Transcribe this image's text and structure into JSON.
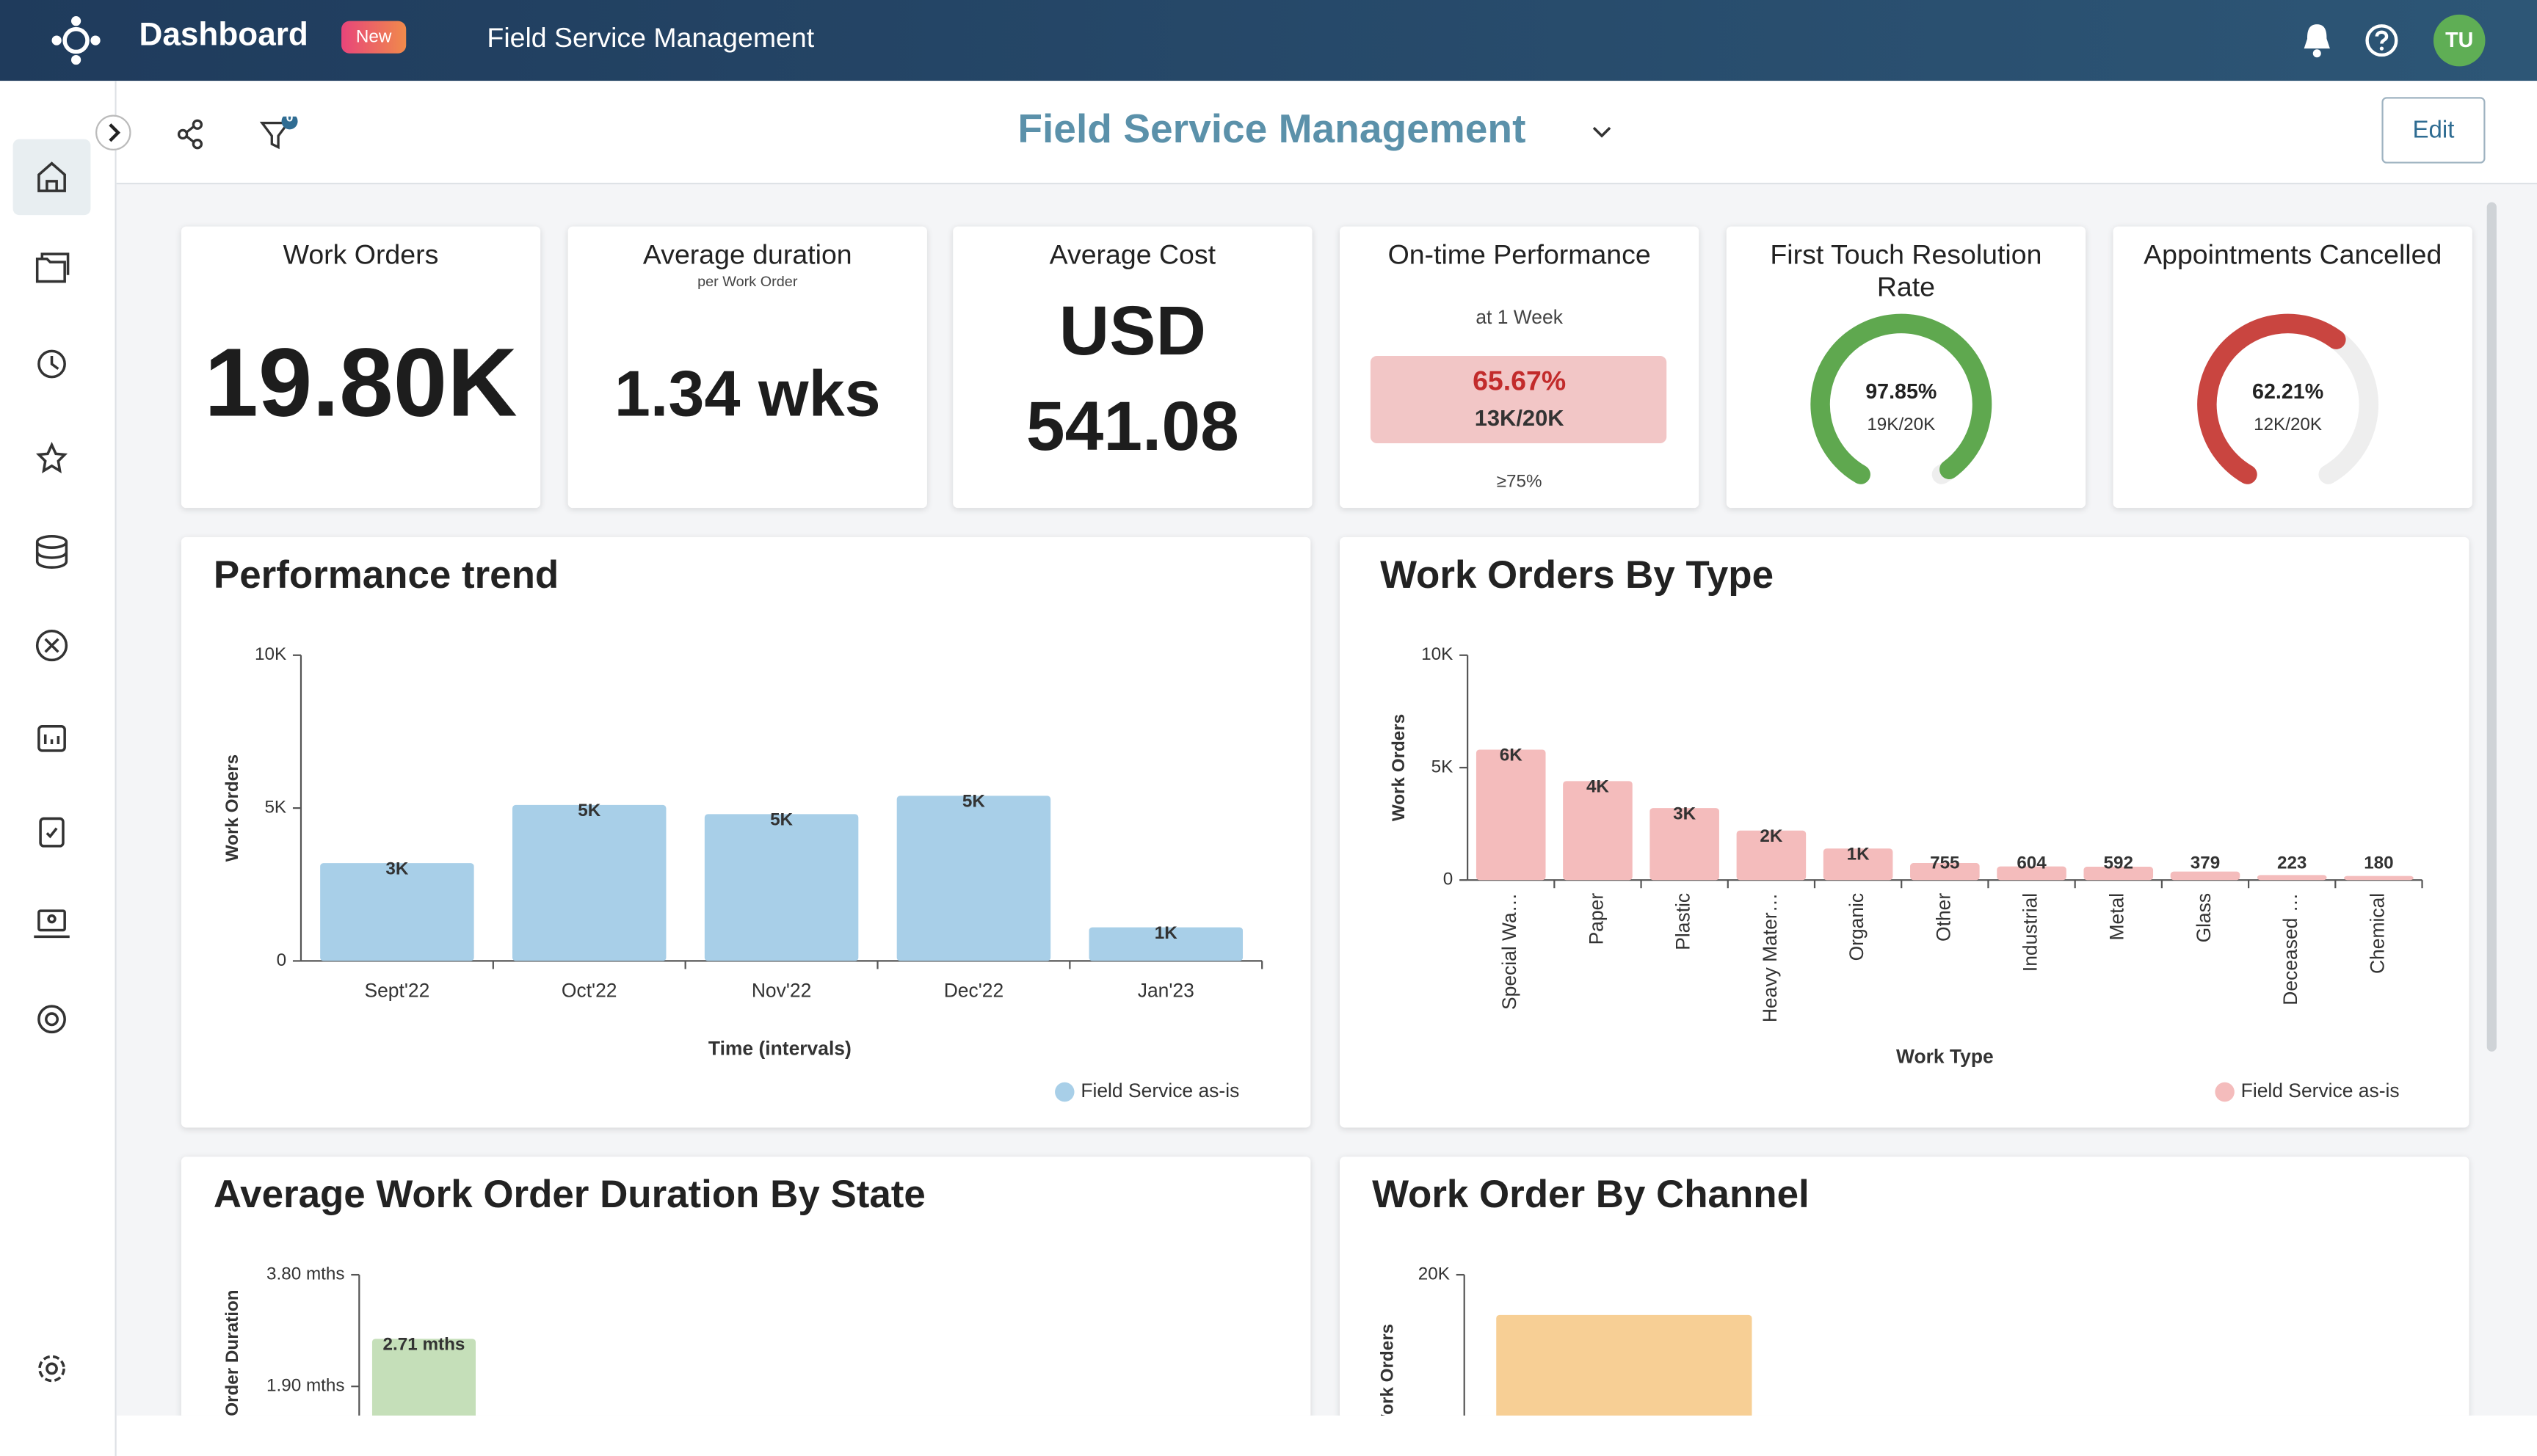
{
  "header": {
    "title": "Dashboard",
    "badge": "New",
    "subtitle": "Field Service Management",
    "avatar": "TU"
  },
  "toolbar": {
    "filter_count": "0",
    "title": "Field Service Management",
    "edit": "Edit"
  },
  "kpis": [
    {
      "title": "Work Orders",
      "value": "19.80K"
    },
    {
      "title": "Average duration",
      "subtitle": "per Work Order",
      "value": "1.34 wks"
    },
    {
      "title": "Average Cost",
      "value": "USD 541.08"
    },
    {
      "title": "On-time Performance",
      "subtitle": "at 1 Week",
      "value": "65.67%",
      "detail": "13K/20K",
      "target": "≥75%"
    },
    {
      "title": "First Touch Resolution Rate",
      "value": 97.85,
      "value_label": "97.85%",
      "detail": "19K/20K",
      "color": "#5fa84f"
    },
    {
      "title": "Appointments Cancelled",
      "value": 62.21,
      "value_label": "62.21%",
      "detail": "12K/20K",
      "color": "#c94540"
    }
  ],
  "chart_data": [
    {
      "type": "bar",
      "title": "Performance trend",
      "x_label": "Time (intervals)",
      "y_label": "Work Orders",
      "categories": [
        "Sept'22",
        "Oct'22",
        "Nov'22",
        "Dec'22",
        "Jan'23"
      ],
      "series": [
        {
          "name": "Field Service as-is",
          "color": "#a8cfe8",
          "values": [
            3200,
            5100,
            4800,
            5400,
            1100
          ],
          "value_labels": [
            "3K",
            "5K",
            "5K",
            "5K",
            "1K"
          ]
        }
      ],
      "ylim": [
        0,
        10000
      ],
      "yticks": [
        0,
        {
          "value": 5000,
          "label": "5K"
        },
        {
          "value": 10000,
          "label": "10K"
        }
      ]
    },
    {
      "type": "bar",
      "title": "Work Orders By Type",
      "x_label": "Work Type",
      "y_label": "Work Orders",
      "categories": [
        "Special Wa…",
        "Paper",
        "Plastic",
        "Heavy Mater…",
        "Organic",
        "Other",
        "Industrial",
        "Metal",
        "Glass",
        "Deceased …",
        "Chemical"
      ],
      "series": [
        {
          "name": "Field Service as-is",
          "color": "#f4bcbc",
          "values": [
            5800,
            4400,
            3200,
            2200,
            1400,
            755,
            604,
            592,
            379,
            223,
            180
          ],
          "value_labels": [
            "6K",
            "4K",
            "3K",
            "2K",
            "1K",
            "755",
            "604",
            "592",
            "379",
            "223",
            "180"
          ]
        }
      ],
      "ylim": [
        0,
        10000
      ],
      "yticks": [
        0,
        {
          "value": 5000,
          "label": "5K"
        },
        {
          "value": 10000,
          "label": "10K"
        }
      ]
    },
    {
      "type": "bar",
      "title": "Average Work Order Duration By State",
      "y_label": "Work Order Duration",
      "categories": [
        null
      ],
      "series": [
        {
          "color": "#c5dfb9",
          "values": [
            2.71
          ],
          "value_labels": [
            "2.71 mths"
          ]
        }
      ],
      "ylim": [
        0,
        3.8
      ],
      "yticks": [
        {
          "value": 1.9,
          "label": "1.90 mths"
        },
        {
          "value": 3.8,
          "label": "3.80 mths"
        }
      ]
    },
    {
      "type": "bar",
      "title": "Work Order By Channel",
      "y_label": "Work Orders",
      "categories": [
        null
      ],
      "series": [
        {
          "color": "#f7cf95",
          "values": [
            16400
          ]
        }
      ],
      "ylim": [
        0,
        20000
      ],
      "yticks": [
        {
          "value": 20000,
          "label": "20K"
        }
      ]
    }
  ]
}
